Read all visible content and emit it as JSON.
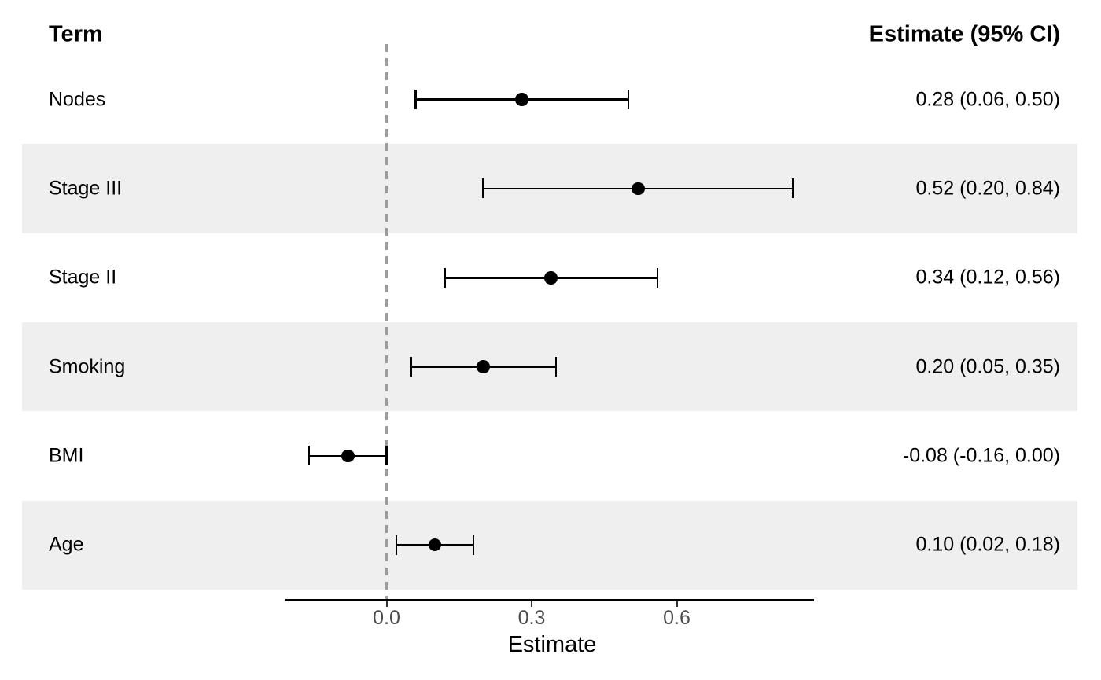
{
  "header": {
    "term_label": "Term",
    "estimate_label": "Estimate (95% CI)"
  },
  "chart_data": {
    "type": "forest",
    "title": "",
    "xlabel": "Estimate",
    "reference_line": 0.0,
    "xlim": [
      -0.21,
      0.88
    ],
    "x_ticks": [
      {
        "value": 0.0,
        "label": "0.0"
      },
      {
        "value": 0.3,
        "label": "0.3"
      },
      {
        "value": 0.6,
        "label": "0.6"
      }
    ],
    "rows": [
      {
        "term": "Nodes",
        "estimate": 0.28,
        "lower": 0.06,
        "upper": 0.5,
        "ci_label": "0.28 (0.06, 0.50)",
        "striped": false
      },
      {
        "term": "Stage III",
        "estimate": 0.52,
        "lower": 0.2,
        "upper": 0.84,
        "ci_label": "0.52 (0.20, 0.84)",
        "striped": true
      },
      {
        "term": "Stage II",
        "estimate": 0.34,
        "lower": 0.12,
        "upper": 0.56,
        "ci_label": "0.34 (0.12, 0.56)",
        "striped": false
      },
      {
        "term": "Smoking",
        "estimate": 0.2,
        "lower": 0.05,
        "upper": 0.35,
        "ci_label": "0.20 (0.05, 0.35)",
        "striped": true
      },
      {
        "term": "BMI",
        "estimate": -0.08,
        "lower": -0.16,
        "upper": 0.0,
        "ci_label": "-0.08 (-0.16, 0.00)",
        "striped": false
      },
      {
        "term": "Age",
        "estimate": 0.1,
        "lower": 0.02,
        "upper": 0.18,
        "ci_label": "0.10 (0.02, 0.18)",
        "striped": true
      }
    ],
    "colors": {
      "stripe": "#EFEFEF",
      "reference_line": "#9C9C9C",
      "ci": "#000000",
      "point": "#000000",
      "axis_line": "#000000",
      "tick_mark": "#333333",
      "tick_text": "#4D4D4D"
    }
  }
}
